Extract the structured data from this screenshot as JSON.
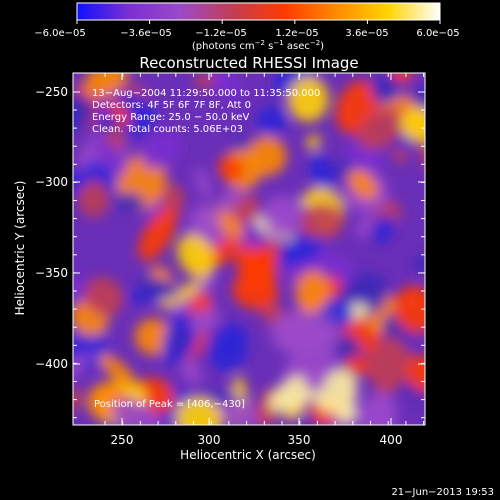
{
  "colorbar": {
    "min": -6e-05,
    "max": 6e-05,
    "tick_labels": [
      "−6.0e−05",
      "−3.6e−05",
      "−1.2e−05",
      "1.2e−05",
      "3.6e−05",
      "6.0e−05"
    ],
    "units_label_main": "(photons cm",
    "units_exp1": "−2",
    "units_s": " s",
    "units_exp2": "−1",
    "units_asec": " asec",
    "units_exp3": "−2",
    "units_close": ")",
    "gradient_stops": [
      "#1010ff",
      "#7a2fd1",
      "#9b49c9",
      "#c23d52",
      "#ff3a00",
      "#ff8a00",
      "#ffd400",
      "#ffffff"
    ]
  },
  "plot": {
    "title": "Reconstructed RHESSI Image",
    "x_axis_label": "Heliocentric X (arcsec)",
    "y_axis_label": "Heliocentric Y (arcsec)",
    "x_tick_labels": [
      "250",
      "300",
      "350",
      "400"
    ],
    "y_tick_labels": [
      "−250",
      "−300",
      "−350",
      "−400"
    ],
    "annotation_lines": [
      "13−Aug−2004 11:29:50.000 to 11:35:50.000",
      "Detectors: 4F 5F 6F 7F 8F, Att 0",
      "Energy Range: 25.0 − 50.0 keV",
      "Clean.  Total counts: 5.06E+03"
    ],
    "peak_label": "Position of Peak = [406,−430]"
  },
  "footer": {
    "timestamp": "21−Jun−2013 19:53"
  }
}
